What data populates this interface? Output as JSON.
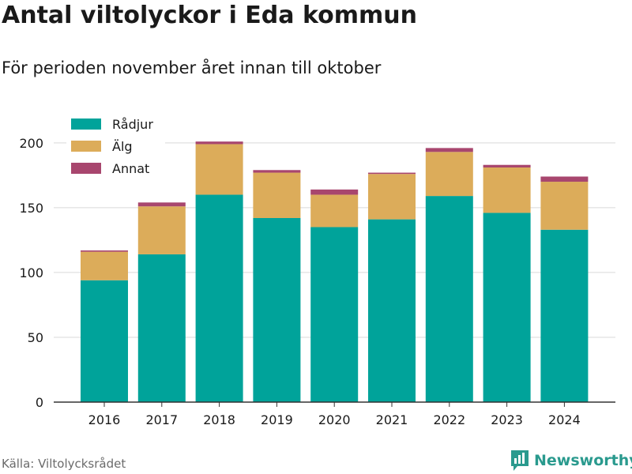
{
  "title": "Antal viltolyckor i Eda kommun",
  "subtitle": "För perioden november året innan till oktober",
  "source": "Källa: Viltolycksrådet",
  "brand": {
    "name": "Newsworthy",
    "icon": "bar-chart-logo-icon",
    "color": "#2a9a8e"
  },
  "chart_data": {
    "type": "bar",
    "stacked": true,
    "categories": [
      "2016",
      "2017",
      "2018",
      "2019",
      "2020",
      "2021",
      "2022",
      "2023",
      "2024"
    ],
    "series": [
      {
        "name": "Rådjur",
        "color": "#00a39a",
        "values": [
          94,
          114,
          160,
          142,
          135,
          141,
          159,
          146,
          133
        ]
      },
      {
        "name": "Älg",
        "color": "#dcac5a",
        "values": [
          22,
          37,
          39,
          35,
          25,
          35,
          34,
          35,
          37
        ]
      },
      {
        "name": "Annat",
        "color": "#a8466e",
        "values": [
          1,
          3,
          2,
          2,
          4,
          1,
          3,
          2,
          4
        ]
      }
    ],
    "ylim": [
      0,
      220
    ],
    "yticks": [
      0,
      50,
      100,
      150,
      200
    ],
    "grid": true,
    "legend_position": "top-left"
  }
}
